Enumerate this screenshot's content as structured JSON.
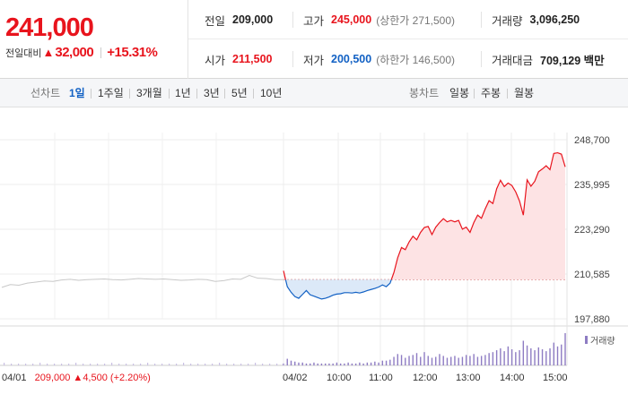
{
  "quote": {
    "current_price": "241,000",
    "change_label": "전일대비",
    "change_symbol": "▲",
    "change_amount": "32,000",
    "change_percent": "+15.31%"
  },
  "stats": {
    "prev_close": {
      "label": "전일",
      "value": "209,000"
    },
    "high": {
      "label": "고가",
      "value": "245,000",
      "limit": "(상한가 271,500)"
    },
    "volume": {
      "label": "거래량",
      "value": "3,096,250"
    },
    "open": {
      "label": "시가",
      "value": "211,500"
    },
    "low": {
      "label": "저가",
      "value": "200,500",
      "limit": "(하한가 146,500)"
    },
    "trade_value": {
      "label": "거래대금",
      "value": "709,129 백만"
    }
  },
  "period_tabs": {
    "label": "선차트",
    "items": [
      "1일",
      "1주일",
      "3개월",
      "1년",
      "3년",
      "5년",
      "10년"
    ],
    "active": "1일"
  },
  "candle_tabs": {
    "label": "봉차트",
    "items": [
      "일봉",
      "주봉",
      "월봉"
    ]
  },
  "colors": {
    "up": "#e8141d",
    "down": "#1261c4",
    "prev_day_line": "#c8c8c8",
    "volume": "#8e7cc3"
  },
  "chart_data": {
    "type": "line",
    "prev_close_reference": 209000,
    "y_axis_ticks": [
      "248,700",
      "235,995",
      "223,290",
      "210,585",
      "197,880"
    ],
    "ylim": [
      197880,
      248700
    ],
    "x_axis_ticks": [
      "04/02",
      "10:00",
      "11:00",
      "12:00",
      "13:00",
      "14:00",
      "15:00"
    ],
    "previous_day": {
      "date": "04/01",
      "close": "209,000",
      "change_symbol": "▲",
      "change": "4,500",
      "change_percent": "(+2.20%)",
      "values": [
        206800,
        207600,
        207400,
        208000,
        208300,
        208600,
        208500,
        208900,
        209100,
        208800,
        209000,
        209100,
        209200,
        209000,
        208900,
        209100,
        209300,
        209200,
        209100,
        209200,
        209000,
        208800,
        208900,
        209100,
        209000,
        208500,
        208700,
        209200,
        209100,
        210200,
        209400,
        209300,
        209000,
        209000
      ]
    },
    "current_day": {
      "values": [
        211500,
        207000,
        205400,
        204200,
        203700,
        204800,
        205900,
        204700,
        204300,
        203900,
        203500,
        203700,
        204100,
        204600,
        204900,
        205000,
        205300,
        205300,
        205200,
        205400,
        205200,
        205500,
        205900,
        206200,
        206500,
        206900,
        207500,
        207000,
        208000,
        211000,
        215200,
        218100,
        217500,
        219700,
        221300,
        220300,
        222400,
        223800,
        224100,
        221800,
        223900,
        225200,
        226300,
        225400,
        225800,
        225400,
        225800,
        223300,
        223900,
        222400,
        225200,
        227300,
        226400,
        229100,
        231400,
        230600,
        234800,
        237200,
        235400,
        236400,
        235700,
        233900,
        231300,
        227300,
        237300,
        235500,
        236900,
        239600,
        240400,
        241300,
        240200,
        244800,
        245000,
        244600,
        241000
      ],
      "volume": [
        2,
        7,
        5,
        4,
        3,
        3,
        2,
        2,
        3,
        2,
        2,
        2,
        2,
        2,
        3,
        2,
        2,
        3,
        2,
        2,
        3,
        2,
        3,
        3,
        4,
        3,
        5,
        5,
        6,
        9,
        12,
        11,
        8,
        10,
        11,
        13,
        9,
        14,
        10,
        8,
        9,
        12,
        10,
        8,
        9,
        10,
        8,
        9,
        11,
        10,
        12,
        9,
        10,
        11,
        13,
        14,
        16,
        18,
        15,
        20,
        17,
        14,
        16,
        26,
        21,
        18,
        16,
        19,
        17,
        15,
        18,
        24,
        20,
        22,
        34
      ]
    },
    "volume_legend": "거래량"
  }
}
